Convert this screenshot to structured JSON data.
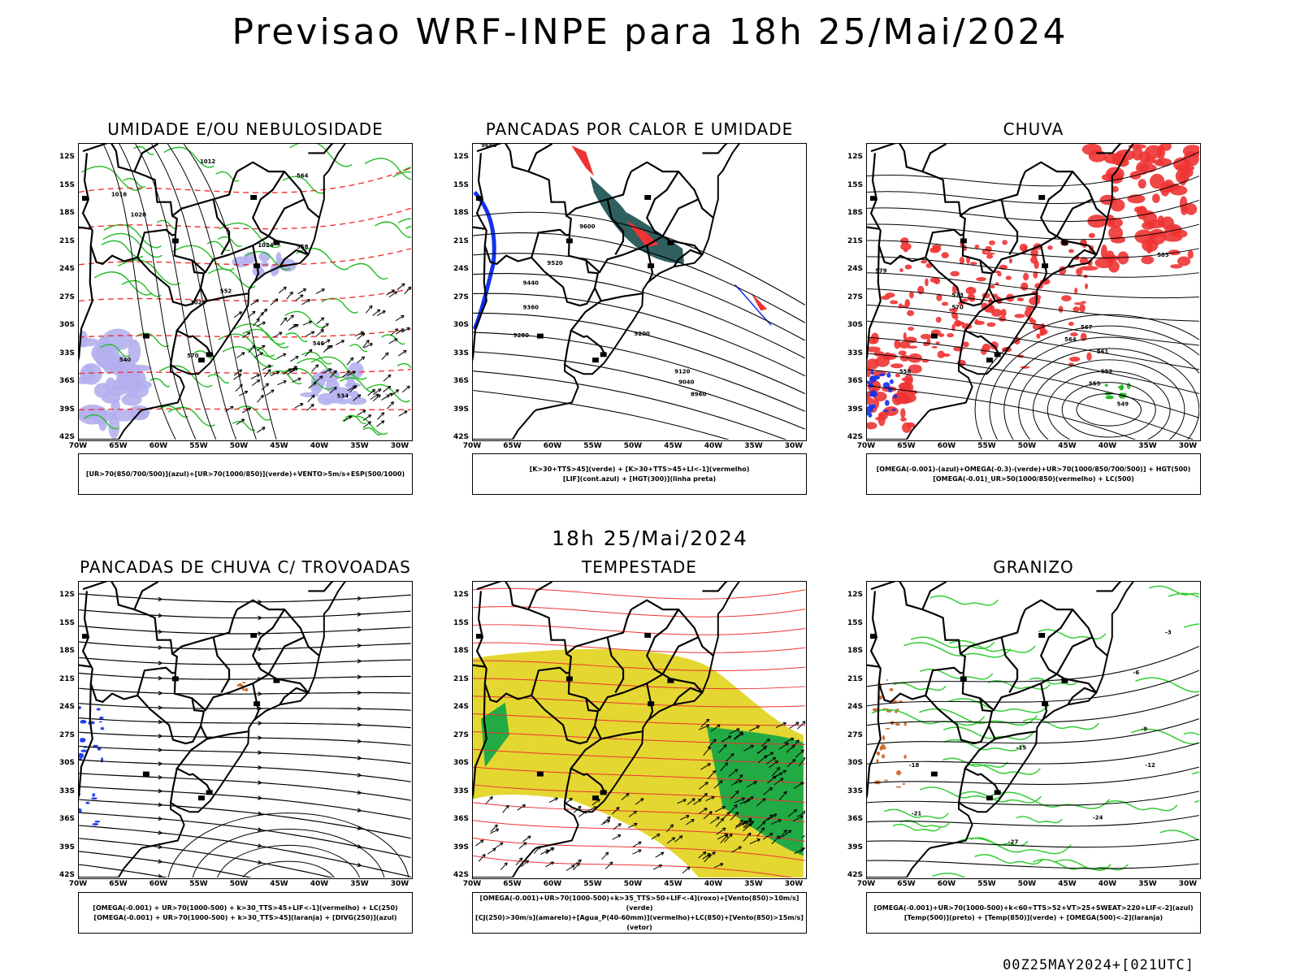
{
  "title": "Previsao WRF-INPE  para 18h 25/Mai/2024",
  "mid_title": "18h 25/Mai/2024",
  "footer": "00Z25MAY2024+[021UTC]",
  "lat_labels": [
    "12S",
    "15S",
    "18S",
    "21S",
    "24S",
    "27S",
    "30S",
    "33S",
    "36S",
    "39S",
    "42S"
  ],
  "lon_labels": [
    "70W",
    "65W",
    "60W",
    "55W",
    "50W",
    "45W",
    "40W",
    "35W",
    "30W"
  ],
  "panels": [
    {
      "title": "UMIDADE E/OU NEBULOSIDADE",
      "legend": [
        "[UR>70(850/700/500)](azul)+[UR>70(1000/850)](verde)+VENTO>5m/s+ESP(500/1000)"
      ],
      "contour_labels": [
        "1012",
        "1016",
        "1020",
        "1024",
        "1028",
        "570",
        "564",
        "558",
        "552",
        "546",
        "540",
        "534"
      ]
    },
    {
      "title": "PANCADAS POR CALOR E UMIDADE",
      "legend": [
        "[K>30+TTS>45](verde) + [K>30+TTS>45+LI<-1](vermelho)",
        "[LIF](cont.azul) + [HGT(300)](linha preta)"
      ],
      "contour_labels": [
        "9680",
        "9600",
        "9520",
        "9440",
        "9360",
        "9280",
        "9200",
        "9120",
        "9040",
        "8960"
      ]
    },
    {
      "title": "CHUVA",
      "legend": [
        "[OMEGA(-0.001)-(azul)+OMEGA(-0.3)-(verde)+UR>70(1000/850/700/500)] + HGT(500)",
        "[OMEGA(-0.01)_UR>50(1000/850)(vermelho) + LC(500)"
      ],
      "contour_labels": [
        "585",
        "579",
        "573",
        "570",
        "567",
        "564",
        "561",
        "558",
        "555",
        "552",
        "549"
      ]
    },
    {
      "title": "PANCADAS DE CHUVA C/ TROVOADAS",
      "legend": [
        "[OMEGA(-0.001) + UR>70(1000-500) + k>30_TTS>45+LIF<-1](vermelho) + LC(250)",
        "[OMEGA(-0.001) + UR>70(1000-500) + k>30_TTS>45](laranja) + [DIVG(250)](azul)"
      ],
      "contour_labels": []
    },
    {
      "title": "TEMPESTADE",
      "legend": [
        "[OMEGA(-0.001)+UR>70(1000-500)+k>35_TTS>50+LIF<-4](roxo)+[Vento(850)>10m/s](verde)",
        "[CJ(250)>30m/s](amarelo)+[Agua_P(40-60mm)](vermelho)+LC(850)+[Vento(850)>15m/s](vetor)"
      ],
      "contour_labels": []
    },
    {
      "title": "GRANIZO",
      "legend": [
        "[OMEGA(-0.001)+UR>70(1000-500)+k<60+TTS>52+VT>25+SWEAT>220+LIF<-2](azul)",
        "[Temp(500)](preto) + [Temp(850)](verde) + [OMEGA(500)<-2](laranja)"
      ],
      "contour_labels": [
        "-3",
        "-6",
        "-9",
        "-12",
        "-15",
        "-18",
        "-21",
        "-24",
        "-27"
      ]
    }
  ]
}
